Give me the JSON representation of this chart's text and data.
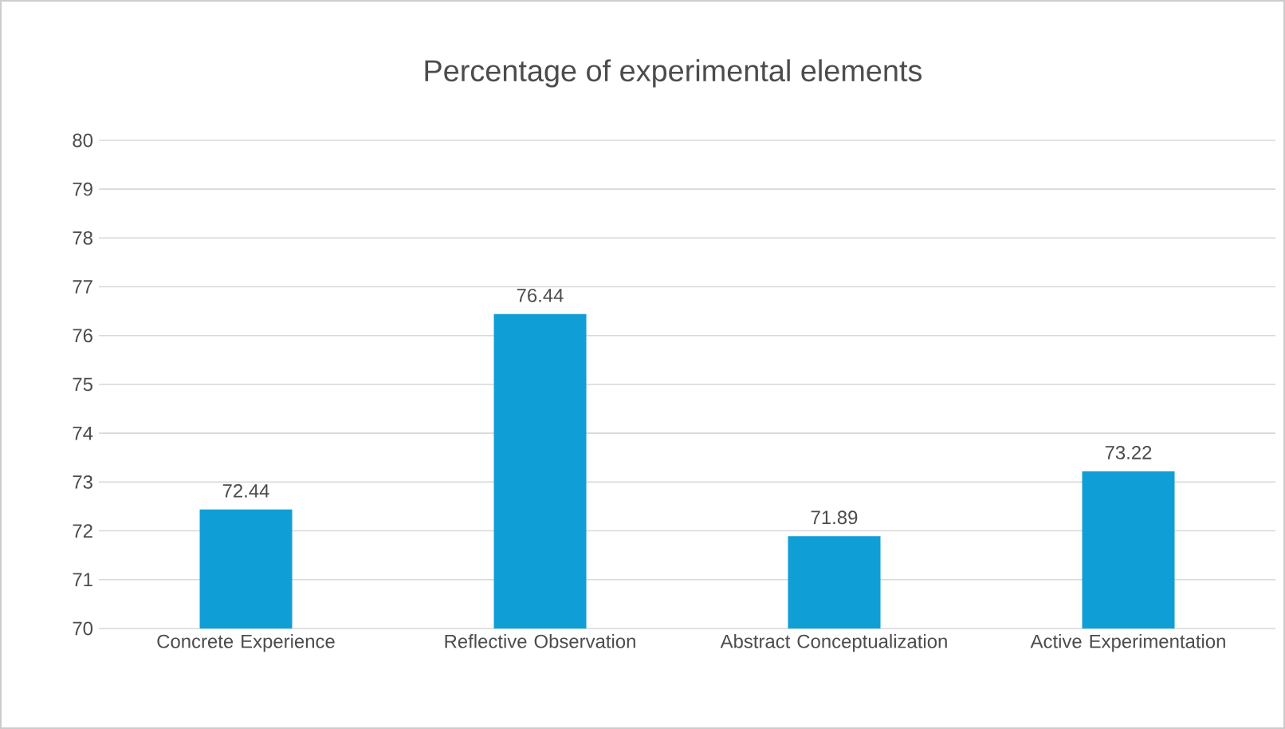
{
  "chart_data": {
    "type": "bar",
    "title": "Percentage of experimental elements",
    "categories": [
      "Concrete Experience",
      "Reflective Observation",
      "Abstract Conceptualization",
      "Active Experimentation"
    ],
    "values": [
      72.44,
      76.44,
      71.89,
      73.22
    ],
    "color": "#0f9ed5",
    "ylim": [
      70,
      80
    ],
    "yticks": [
      70,
      71,
      72,
      73,
      74,
      75,
      76,
      77,
      78,
      79,
      80
    ],
    "grid": "y",
    "data_labels": true
  }
}
